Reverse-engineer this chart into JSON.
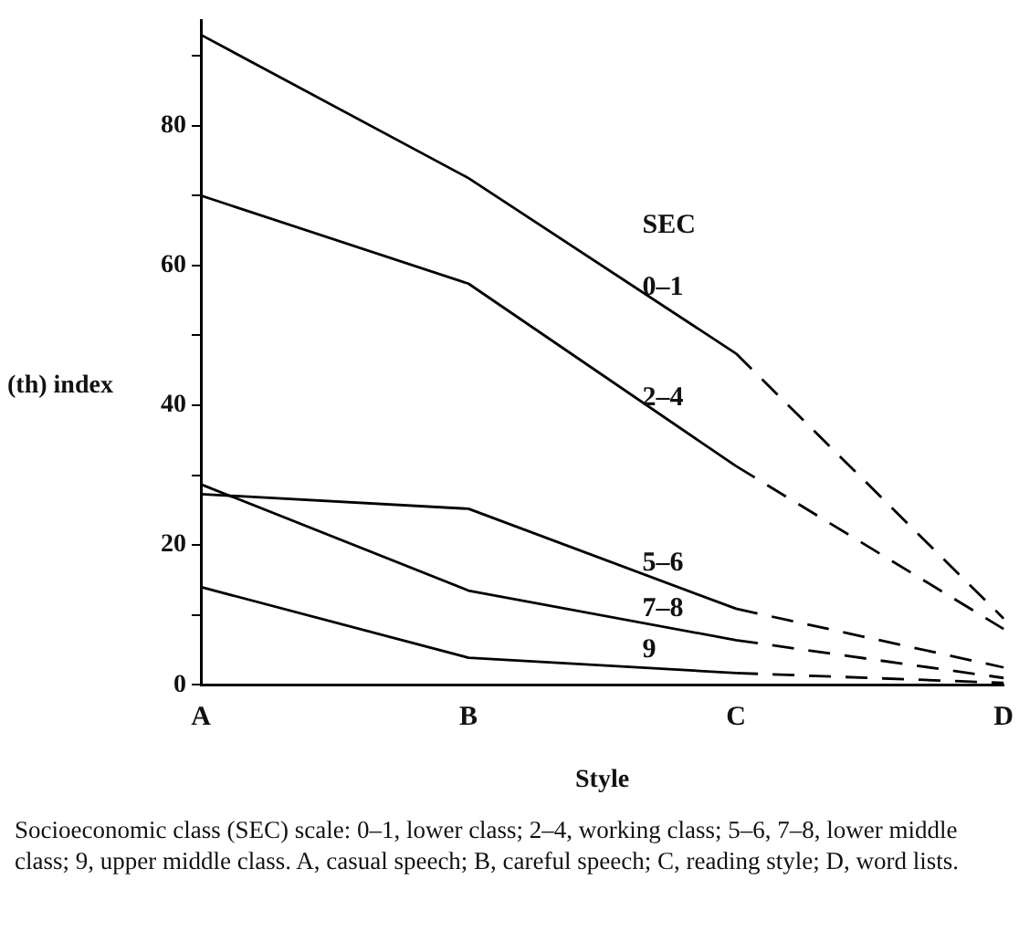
{
  "chart_data": {
    "type": "line",
    "xlabel": "Style",
    "ylabel": "(th) index",
    "legend_title": "SEC",
    "categories": [
      "A",
      "B",
      "C",
      "D"
    ],
    "ylim": [
      0,
      95
    ],
    "yticks": [
      0,
      {
        "value": 10,
        "label": null
      },
      20,
      {
        "value": 30,
        "label": null
      },
      40,
      {
        "value": 50,
        "label": null
      },
      60,
      {
        "value": 70,
        "label": null
      },
      80,
      {
        "value": 90,
        "label": null
      }
    ],
    "grid": false,
    "legend": false,
    "marker": "none",
    "series": [
      {
        "name": "0–1",
        "color": "#000000",
        "line_style": "solid",
        "values": [
          93,
          72.5,
          47.4,
          null
        ]
      },
      {
        "name": "2–4",
        "color": "#000000",
        "line_style": "solid",
        "values": [
          70,
          57.4,
          31.3,
          null
        ]
      },
      {
        "name": "5–6",
        "color": "#000000",
        "line_style": "solid",
        "values": [
          27.3,
          25.2,
          10.9,
          null
        ]
      },
      {
        "name": "7–8",
        "color": "#000000",
        "line_style": "solid",
        "values": [
          28.7,
          13.5,
          6.4,
          null
        ]
      },
      {
        "name": "9",
        "color": "#000000",
        "line_style": "solid",
        "values": [
          14,
          3.9,
          1.7,
          null
        ]
      },
      {
        "color": "#000000",
        "line_style": "dashed",
        "values": [
          null,
          null,
          47.4,
          9.5
        ]
      },
      {
        "color": "#000000",
        "line_style": "dashed",
        "values": [
          null,
          null,
          31.3,
          8
        ]
      },
      {
        "color": "#000000",
        "line_style": "dashed",
        "values": [
          null,
          null,
          10.9,
          2.5
        ]
      },
      {
        "color": "#000000",
        "line_style": "dashed",
        "values": [
          null,
          null,
          6.4,
          1
        ]
      },
      {
        "color": "#000000",
        "line_style": "dashed",
        "values": [
          null,
          null,
          1.7,
          0.3
        ]
      }
    ],
    "annotations": [
      "Socioeconomic class (SEC) scale: 0–1, lower class; 2–4, working class; 5–6, 7–8, lower middle class; 9, upper middle class. A, casual speech; B, careful speech; C, reading style; D, word lists."
    ]
  }
}
